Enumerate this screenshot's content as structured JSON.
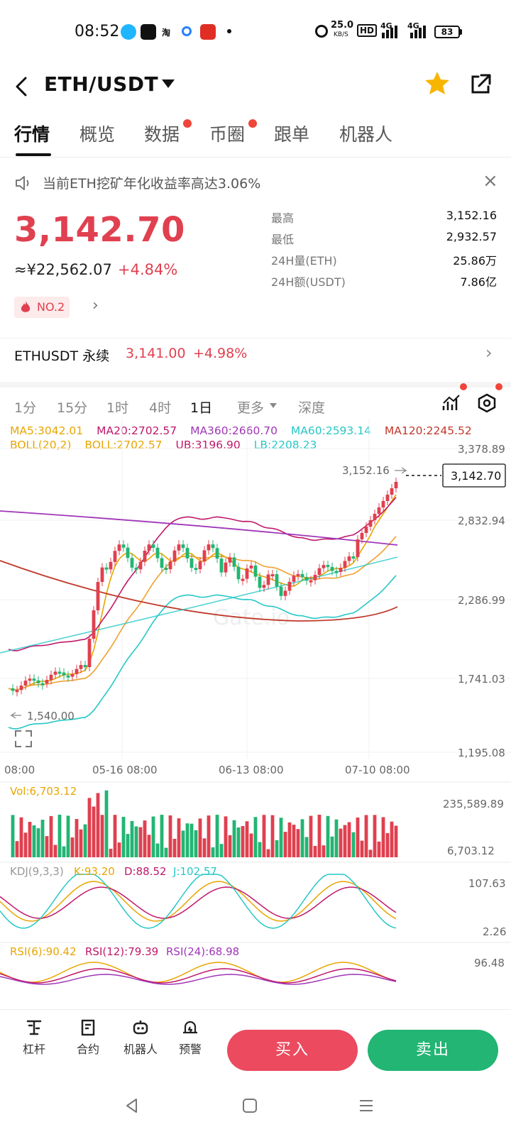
{
  "status_bar": {
    "time": "08:52",
    "net_speed": "25.0",
    "net_unit": "KB/S",
    "hd": "HD",
    "sig1": "4G",
    "sig2": "4G",
    "battery": "83"
  },
  "header": {
    "title": "ETH/USDT"
  },
  "tabs": [
    {
      "label": "行情",
      "active": true
    },
    {
      "label": "概览"
    },
    {
      "label": "数据",
      "dot": true
    },
    {
      "label": "币圈",
      "dot": true
    },
    {
      "label": "跟单"
    },
    {
      "label": "机器人"
    }
  ],
  "notice": {
    "text": "当前ETH挖矿年化收益率高达3.06%",
    "close": "×"
  },
  "price": {
    "last": "3,142.70",
    "cny": "≈¥22,562.07",
    "change": "+4.84%",
    "rank": "NO.2"
  },
  "stats": [
    {
      "label": "最高",
      "value": "3,152.16"
    },
    {
      "label": "最低",
      "value": "2,932.57"
    },
    {
      "label": "24H量(ETH)",
      "value": "25.86万"
    },
    {
      "label": "24H额(USDT)",
      "value": "7.86亿"
    }
  ],
  "perpetual": {
    "name": "ETHUSDT 永续",
    "price": "3,141.00",
    "change": "+4.98%"
  },
  "intervals": [
    "1分",
    "15分",
    "1时",
    "4时",
    "1日",
    "更多",
    "深度"
  ],
  "active_interval": "1日",
  "indicators": {
    "ma5": "MA5:3042.01",
    "ma20": "MA20:2702.57",
    "ma360": "MA360:2660.70",
    "ma60": "MA60:2593.14",
    "ma120": "MA120:2245.52",
    "boll": "BOLL(20,2)",
    "boll_mid": "BOLL:2702.57",
    "ub": "UB:3196.90",
    "lb": "LB:2208.23",
    "vol": "Vol:6,703.12",
    "kdj": "KDJ(9,3,3)",
    "k": "K:93.20",
    "d": "D:88.52",
    "j": "J:102.57",
    "rsi6": "RSI(6):90.42",
    "rsi12": "RSI(12):79.39",
    "rsi24": "RSI(24):68.98"
  },
  "colors": {
    "up": "#e0404f",
    "down": "#22b573",
    "ma5": "#e8a500",
    "ma20": "#e8a500",
    "ma360": "#a036b8",
    "ma60": "#27c7c7",
    "ma120": "#c0392b",
    "boll": "#c0186a"
  },
  "chart_data": {
    "type": "candlestick",
    "price_axis": [
      "3,378.89",
      "2,832.94",
      "2,286.99",
      "1,741.03",
      "1,195.08"
    ],
    "time_axis": [
      "08:00",
      "05-16 08:00",
      "06-13 08:00",
      "07-10 08:00"
    ],
    "high_marker": "3,152.16",
    "low_marker": "1,540.00",
    "last_price_tag": "3,142.70",
    "volume_axis": [
      "235,589.89",
      "6,703.12"
    ],
    "kdj_axis": [
      "107.63",
      "2.26"
    ],
    "rsi_axis": [
      "96.48"
    ],
    "watermark": "Gate.io"
  },
  "bottom_bar": {
    "leverage": "杠杆",
    "contract": "合约",
    "robot": "机器人",
    "alert": "预警",
    "buy": "买入",
    "sell": "卖出"
  }
}
